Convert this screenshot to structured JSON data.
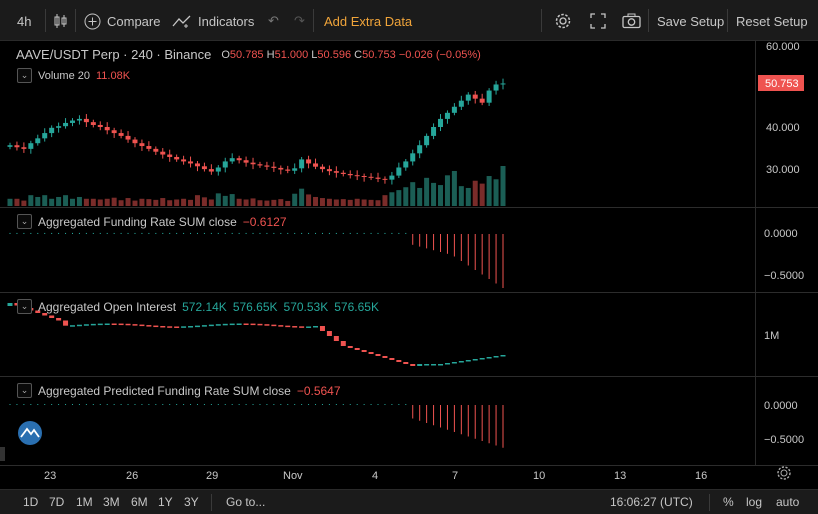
{
  "toolbar": {
    "interval": "4h",
    "compare": "Compare",
    "indicators": "Indicators",
    "add_extra_data": "Add Extra Data",
    "save_setup": "Save Setup",
    "reset_setup": "Reset Setup"
  },
  "symbol": {
    "title": "AAVE/USDT Perp · 240 · Binance",
    "o_label": "O",
    "o_value": "50.785",
    "h_label": "H",
    "h_value": "51.000",
    "l_label": "L",
    "l_value": "50.596",
    "c_label": "C",
    "c_value": "50.753",
    "change": "−0.026 (−0.05%)",
    "last_price": "50.753"
  },
  "volume": {
    "label": "Volume 20",
    "value": "11.08K"
  },
  "funding": {
    "label": "Aggregated Funding Rate SUM close",
    "value": "−0.6127"
  },
  "open_interest": {
    "label": "Aggregated Open Interest",
    "values": [
      "572.14K",
      "576.65K",
      "570.53K",
      "576.65K"
    ]
  },
  "predicted": {
    "label": "Aggregated Predicted Funding Rate SUM close",
    "value": "−0.5647"
  },
  "price_axis": [
    "60.000",
    "40.000",
    "30.000"
  ],
  "funding_axis": [
    "0.0000",
    "−0.5000"
  ],
  "oi_axis": [
    "1M"
  ],
  "pred_axis": [
    "0.0000",
    "−0.5000"
  ],
  "time_axis": [
    "23",
    "26",
    "29",
    "Nov",
    "4",
    "7",
    "10",
    "13",
    "16"
  ],
  "bottombar": {
    "ranges": [
      "1D",
      "7D",
      "1M",
      "3M",
      "6M",
      "1Y",
      "3Y"
    ],
    "goto": "Go to...",
    "clock": "16:06:27 (UTC)",
    "percent": "%",
    "log": "log",
    "auto": "auto"
  },
  "colors": {
    "up": "#26a69a",
    "down": "#ef5350",
    "accent": "#f0a43a",
    "badge": "#ef5350"
  },
  "chart_data": {
    "type": "candlestick",
    "candles_close": [
      35.5,
      35.0,
      34.6,
      36.0,
      37.2,
      38.5,
      39.8,
      40.2,
      41.0,
      41.6,
      42.0,
      41.2,
      40.5,
      40.0,
      39.2,
      38.5,
      37.8,
      36.9,
      36.0,
      35.3,
      34.6,
      33.9,
      33.2,
      32.6,
      32.0,
      31.5,
      31.0,
      30.3,
      29.6,
      29.0,
      30.0,
      31.5,
      32.3,
      31.8,
      31.2,
      30.8,
      30.5,
      30.2,
      29.9,
      29.5,
      29.2,
      29.8,
      32.0,
      31.0,
      30.2,
      29.6,
      29.1,
      28.7,
      28.4,
      28.1,
      27.9,
      27.7,
      27.5,
      27.2,
      27.0,
      28.0,
      30.0,
      31.5,
      33.5,
      35.5,
      37.8,
      40.0,
      42.0,
      43.5,
      45.0,
      46.5,
      48.0,
      47.0,
      46.0,
      49.0,
      50.5,
      50.753
    ],
    "volume": [
      2,
      2,
      1.5,
      3,
      2.5,
      3,
      2,
      2.5,
      3,
      2,
      2.5,
      2,
      2,
      1.8,
      2,
      2.3,
      1.6,
      2.2,
      1.5,
      2,
      1.9,
      1.7,
      2.2,
      1.6,
      1.8,
      2,
      1.7,
      3,
      2.4,
      1.8,
      3.5,
      2.8,
      3.3,
      2,
      1.8,
      2.1,
      1.6,
      1.5,
      1.7,
      1.9,
      1.4,
      3.4,
      4.8,
      3.2,
      2.5,
      2.2,
      2.0,
      1.8,
      1.9,
      1.7,
      2.0,
      1.8,
      1.7,
      1.6,
      3.0,
      3.8,
      4.4,
      5.2,
      6.6,
      5.0,
      7.8,
      6.4,
      5.8,
      8.5,
      9.7,
      5.5,
      5.0,
      7.0,
      6.2,
      8.3,
      7.4,
      11.08
    ]
  }
}
